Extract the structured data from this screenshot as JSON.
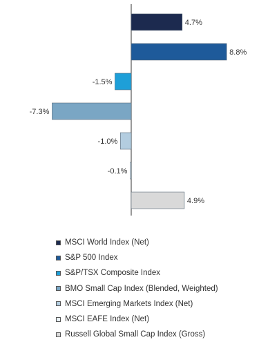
{
  "chart_data": {
    "type": "bar",
    "orientation": "horizontal",
    "series": [
      {
        "name": "MSCI World Index (Net)",
        "value": 4.7,
        "label": "4.7%",
        "color": "#1c2a4f"
      },
      {
        "name": "S&P 500 Index",
        "value": 8.8,
        "label": "8.8%",
        "color": "#1e5a9a"
      },
      {
        "name": "S&P/TSX Composite Index",
        "value": -1.5,
        "label": "-1.5%",
        "color": "#1e9fd8"
      },
      {
        "name": "BMO Small Cap Index (Blended, Weighted)",
        "value": -7.3,
        "label": "-7.3%",
        "color": "#7aa6c4"
      },
      {
        "name": "MSCI Emerging Markets Index (Net)",
        "value": -1.0,
        "label": "-1.0%",
        "color": "#b3cde0"
      },
      {
        "name": "MSCI EAFE Index (Net)",
        "value": -0.1,
        "label": "-0.1%",
        "color": "#e8f1f8"
      },
      {
        "name": "Russell Global Small Cap Index (Gross)",
        "value": 4.9,
        "label": "4.9%",
        "color": "#d9d9d9"
      }
    ],
    "legend_position": "bottom",
    "grid": false,
    "baseline_color": "#555555"
  }
}
